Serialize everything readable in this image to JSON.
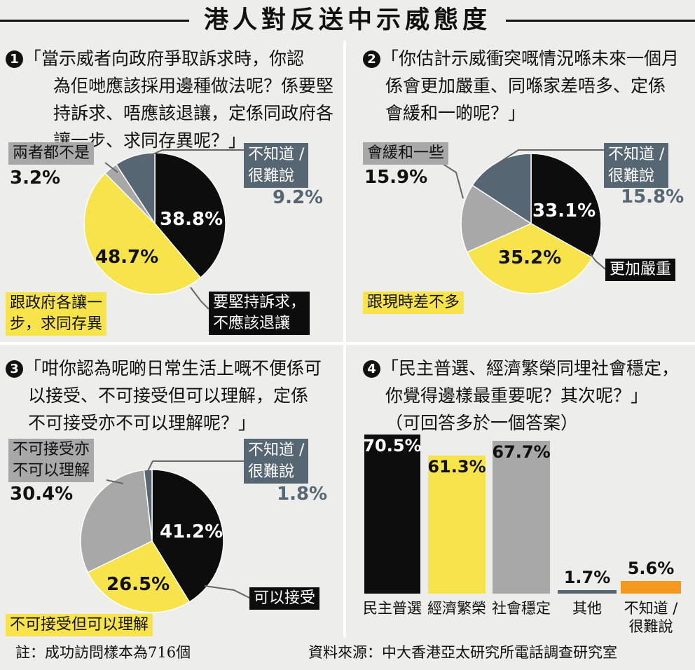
{
  "title": "港人對反送中示威態度",
  "q1": {
    "num": "1",
    "lines": [
      "「當示威者向政府爭取訴求時，你認",
      "為佢哋應該採用邊種做法呢？係要堅",
      "持訴求、唔應該退讓，定係同政府各",
      "讓一步、求同存異呢？」"
    ]
  },
  "q2": {
    "num": "2",
    "lines": [
      "「你估計示威衝突嘅情況喺未來一個月",
      "係會更加嚴重、同喺家差唔多、定係",
      "會緩和一啲呢？」"
    ]
  },
  "q3": {
    "num": "3",
    "lines": [
      "「咁你認為呢啲日常生活上嘅不便係可",
      "以接受、不可接受但可以理解，定係",
      "不可接受亦不可以理解呢？」"
    ]
  },
  "q4": {
    "num": "4",
    "lines": [
      "「民主普選、經濟繁榮同埋社會穩定，",
      "你覺得邊樣最重要呢？其次呢？」",
      "（可回答多於一個答案）"
    ]
  },
  "colors": {
    "black": "#0d0d0d",
    "yellow": "#f7e34a",
    "gray": "#a8a8a8",
    "slate": "#566673",
    "orange": "#f39a1e"
  },
  "chart_data": [
    {
      "type": "pie",
      "labels": [
        "要堅持訴求，不應該退讓",
        "跟政府各讓一步，求同存異",
        "兩者都不是",
        "不知道／很難說"
      ],
      "values": [
        38.8,
        48.7,
        3.2,
        9.2
      ],
      "value_labels": [
        "38.8%",
        "48.7%",
        "3.2%",
        "9.2%"
      ],
      "label_lines": [
        [
          "要堅持訴求，",
          "不應該退讓"
        ],
        [
          "跟政府各讓一",
          "步，求同存異"
        ],
        [
          "兩者都不是"
        ],
        [
          "不知道 /",
          "很難說"
        ]
      ]
    },
    {
      "type": "pie",
      "labels": [
        "更加嚴重",
        "跟現時差不多",
        "會緩和一些",
        "不知道／很難說"
      ],
      "values": [
        33.1,
        35.2,
        15.9,
        15.8
      ],
      "value_labels": [
        "33.1%",
        "35.2%",
        "15.9%",
        "15.8%"
      ],
      "label_lines": [
        [
          "更加嚴重"
        ],
        [
          "跟現時差不多"
        ],
        [
          "會緩和一些"
        ],
        [
          "不知道 /",
          "很難說"
        ]
      ]
    },
    {
      "type": "pie",
      "labels": [
        "可以接受",
        "不可接受但可以理解",
        "不可接受亦不可以理解",
        "不知道／很難說"
      ],
      "values": [
        41.2,
        26.5,
        30.4,
        1.8
      ],
      "value_labels": [
        "41.2%",
        "26.5%",
        "30.4%",
        "1.8%"
      ],
      "label_lines": [
        [
          "可以接受"
        ],
        [
          "不可接受但可以理解"
        ],
        [
          "不可接受亦",
          "不可以理解"
        ],
        [
          "不知道 /",
          "很難說"
        ]
      ]
    },
    {
      "type": "bar",
      "categories": [
        "民主普選",
        "經濟繁榮",
        "社會穩定",
        "其他",
        "不知道／很難說"
      ],
      "category_lines": [
        [
          "民主普選"
        ],
        [
          "經濟繁榮"
        ],
        [
          "社會穩定"
        ],
        [
          "其他"
        ],
        [
          "不知道 /",
          "很難說"
        ]
      ],
      "values": [
        70.5,
        61.3,
        67.7,
        1.7,
        5.6
      ],
      "value_labels": [
        "70.5%",
        "61.3%",
        "67.7%",
        "1.7%",
        "5.6%"
      ],
      "ylim": [
        0,
        70.5
      ]
    }
  ],
  "footer": {
    "note": "註：成功訪問樣本為716個",
    "source": "資料來源：中大香港亞太研究所電話調查研究室"
  }
}
